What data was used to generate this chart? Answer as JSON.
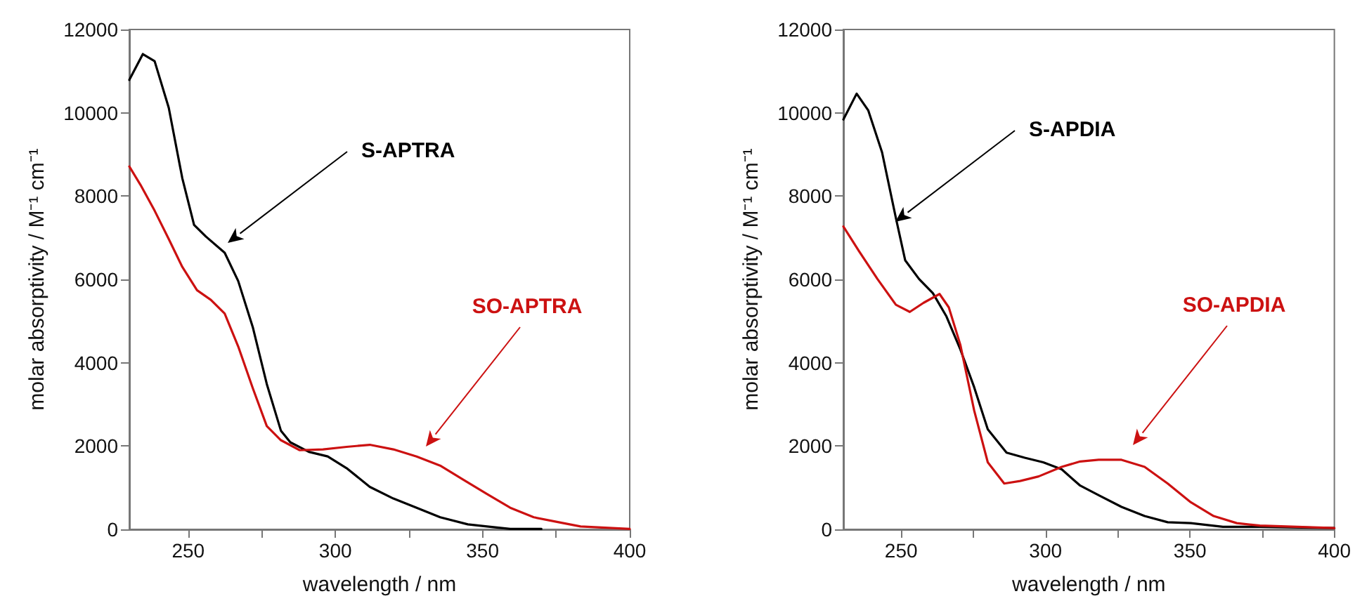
{
  "chart_data": [
    {
      "type": "line",
      "xlabel": "wavelength / nm",
      "ylabel": "molar absorptivity / M⁻¹ cm⁻¹",
      "xlim": [
        230,
        400
      ],
      "xticks": [
        250,
        {
          "value": 275,
          "label": null
        },
        300,
        {
          "value": 325,
          "label": null
        },
        350,
        {
          "value": 375,
          "label": null
        },
        400
      ],
      "ylim": [
        0,
        12000
      ],
      "yticks": [
        0,
        2000,
        4000,
        6000,
        8000,
        10000,
        12000
      ],
      "grid": false,
      "marker": "none",
      "line_style": "solid",
      "series": [
        {
          "color": "#000000",
          "x": [
            230,
            234.6,
            238.6,
            243.4,
            248,
            252,
            256,
            262.4,
            267,
            272,
            276.7,
            281.5,
            284.7,
            291,
            297.4,
            303.8,
            311.7,
            319.7,
            327.6,
            335.6,
            345,
            351.5,
            359.4,
            370
          ],
          "values": [
            10790,
            11410,
            11240,
            10120,
            8430,
            7310,
            7030,
            6640,
            5960,
            4840,
            3490,
            2370,
            2090,
            1860,
            1750,
            1470,
            1020,
            740,
            520,
            290,
            120,
            70,
            10,
            10
          ]
        },
        {
          "color": "#cc1111",
          "x": [
            230,
            233.8,
            238.6,
            243.4,
            248,
            253,
            257.7,
            262.4,
            267,
            272,
            276.7,
            281.5,
            287.9,
            295.8,
            303.8,
            311.7,
            319.7,
            327.6,
            335.6,
            343.5,
            351.5,
            359.4,
            367.4,
            375.3,
            383.3,
            400
          ],
          "values": [
            8710,
            8270,
            7650,
            6970,
            6300,
            5740,
            5510,
            5180,
            4390,
            3380,
            2480,
            2140,
            1900,
            1920,
            1980,
            2030,
            1920,
            1750,
            1530,
            1190,
            850,
            520,
            290,
            180,
            70,
            10
          ]
        }
      ],
      "annotations": [
        "S-APTRA",
        "SO-APTRA"
      ]
    },
    {
      "type": "line",
      "xlabel": "wavelength / nm",
      "ylabel": "molar absorptivity / M⁻¹ cm⁻¹",
      "xlim": [
        230,
        400
      ],
      "xticks": [
        250,
        {
          "value": 275,
          "label": null
        },
        300,
        {
          "value": 325,
          "label": null
        },
        350,
        {
          "value": 375,
          "label": null
        },
        400
      ],
      "ylim": [
        0,
        12000
      ],
      "yticks": [
        0,
        2000,
        4000,
        6000,
        8000,
        10000,
        12000
      ],
      "grid": false,
      "marker": "none",
      "line_style": "solid",
      "series": [
        {
          "color": "#000000",
          "x": [
            230,
            234.6,
            238.6,
            243.4,
            248.2,
            251.4,
            256.2,
            261,
            265.7,
            270.5,
            275.3,
            280,
            286.5,
            292.8,
            299.2,
            305.6,
            312,
            318.4,
            326.3,
            334.3,
            342.3,
            350.3,
            361.4,
            374.2,
            400
          ],
          "values": [
            9840,
            10460,
            10060,
            9050,
            7470,
            6460,
            6010,
            5670,
            5110,
            4320,
            3410,
            2400,
            1840,
            1720,
            1610,
            1440,
            1050,
            820,
            540,
            320,
            170,
            150,
            60,
            60,
            30
          ]
        },
        {
          "color": "#cc1111",
          "x": [
            230,
            235.4,
            241.8,
            248.2,
            253,
            257.8,
            263.3,
            266.5,
            270.5,
            275.3,
            280,
            285.7,
            291.2,
            297.6,
            305.6,
            312,
            318.4,
            326.3,
            334.3,
            342.3,
            350.3,
            358.2,
            366.2,
            374.2,
            400
          ],
          "values": [
            7270,
            6680,
            6010,
            5390,
            5220,
            5440,
            5650,
            5330,
            4430,
            2850,
            1610,
            1100,
            1160,
            1270,
            1500,
            1630,
            1670,
            1670,
            1500,
            1100,
            650,
            320,
            150,
            90,
            30
          ]
        }
      ],
      "annotations": [
        "S-APDIA",
        "SO-APDIA"
      ]
    }
  ]
}
